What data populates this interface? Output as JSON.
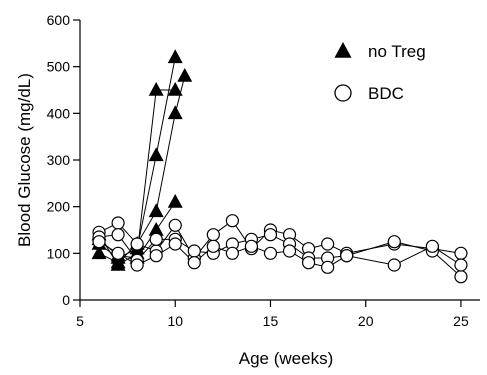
{
  "chart_data": {
    "type": "scatter",
    "xlabel": "Age (weeks)",
    "ylabel": "Blood Glucose (mg/dL)",
    "xlim": [
      5,
      26
    ],
    "ylim": [
      0,
      600
    ],
    "xticks": [
      5,
      10,
      15,
      20,
      25
    ],
    "yticks": [
      0,
      100,
      200,
      300,
      400,
      500,
      600
    ],
    "legend_position": "top-right",
    "series": [
      {
        "name": "no Treg",
        "marker": "filled-triangle",
        "color": "#000000",
        "lines": [
          {
            "x": [
              6,
              7,
              8,
              9,
              10,
              10.5
            ],
            "y": [
              100,
              80,
              120,
              190,
              400,
              480
            ]
          },
          {
            "x": [
              6,
              7,
              8,
              9,
              10
            ],
            "y": [
              120,
              90,
              110,
              310,
              520
            ]
          },
          {
            "x": [
              6,
              7,
              8,
              9,
              10
            ],
            "y": [
              140,
              75,
              100,
              450,
              450
            ]
          },
          {
            "x": [
              6,
              7,
              8,
              9,
              10
            ],
            "y": [
              130,
              95,
              90,
              150,
              210
            ]
          }
        ]
      },
      {
        "name": "BDC",
        "marker": "open-circle",
        "color": "#000000",
        "lines": [
          {
            "x": [
              6,
              7,
              8,
              9,
              10,
              11,
              12,
              13,
              14,
              15,
              16,
              17,
              18,
              19,
              21.5,
              23.5,
              25
            ],
            "y": [
              145,
              165,
              120,
              105,
              160,
              90,
              140,
              170,
              110,
              150,
              140,
              110,
              120,
              100,
              120,
              110,
              100
            ]
          },
          {
            "x": [
              6,
              7,
              8,
              9,
              10,
              11,
              12,
              13,
              14,
              15,
              16,
              17,
              18,
              19,
              21.5,
              23.5,
              25
            ],
            "y": [
              135,
              140,
              85,
              130,
              130,
              105,
              100,
              120,
              130,
              140,
              120,
              90,
              90,
              95,
              125,
              105,
              50
            ]
          },
          {
            "x": [
              6,
              7,
              8,
              9,
              10,
              11,
              12,
              13,
              14,
              15,
              16,
              17,
              18,
              19,
              21.5,
              23.5,
              25
            ],
            "y": [
              125,
              100,
              75,
              95,
              120,
              80,
              115,
              100,
              115,
              100,
              105,
              80,
              70,
              95,
              75,
              115,
              75
            ]
          }
        ]
      }
    ]
  }
}
